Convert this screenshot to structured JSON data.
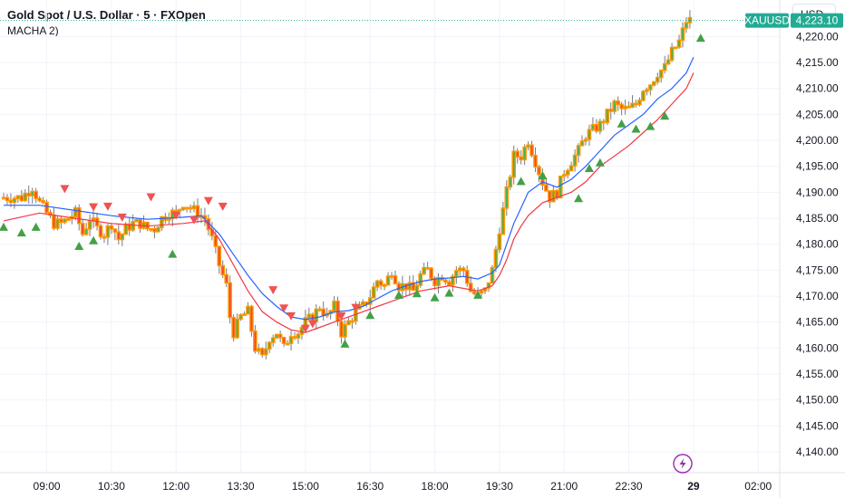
{
  "header": {
    "title": "Gold Spot / U.S. Dollar · 5 · FXOpen",
    "indicator_label": "MACHA 2)",
    "currency_button": "USD"
  },
  "price_tag": {
    "symbol": "XAUUSD",
    "value": "4,223.10",
    "price": 4223.1,
    "color": "#22ab94"
  },
  "lightning_icon": "lightning-icon",
  "colors": {
    "candle_up_body": "#4caf50",
    "candle_down_body": "#f44336",
    "candle_outline": "#ff9800",
    "wick": "#787b86",
    "ma_fast": "#2962ff",
    "ma_slow": "#f23645",
    "signal_up": "#43a047",
    "signal_down": "#ef5350",
    "grid": "#f0f3fa"
  },
  "chart_data": {
    "type": "candlestick",
    "ylim": [
      4136,
      4226
    ],
    "xlim": [
      0,
      216
    ],
    "grid": true,
    "y_ticks": [
      "4,140.00",
      "4,145.00",
      "4,150.00",
      "4,155.00",
      "4,160.00",
      "4,165.00",
      "4,170.00",
      "4,175.00",
      "4,180.00",
      "4,185.00",
      "4,190.00",
      "4,195.00",
      "4,200.00",
      "4,205.00",
      "4,210.00",
      "4,215.00",
      "4,220.00"
    ],
    "y_tick_values": [
      4140,
      4145,
      4150,
      4155,
      4160,
      4165,
      4170,
      4175,
      4180,
      4185,
      4190,
      4195,
      4200,
      4205,
      4210,
      4215,
      4220
    ],
    "x_ticks": [
      {
        "label": "09:00",
        "t": 12,
        "bold": false
      },
      {
        "label": "10:30",
        "t": 30,
        "bold": false
      },
      {
        "label": "12:00",
        "t": 48,
        "bold": false
      },
      {
        "label": "13:30",
        "t": 66,
        "bold": false
      },
      {
        "label": "15:00",
        "t": 84,
        "bold": false
      },
      {
        "label": "16:30",
        "t": 102,
        "bold": false
      },
      {
        "label": "18:00",
        "t": 120,
        "bold": false
      },
      {
        "label": "19:30",
        "t": 138,
        "bold": false
      },
      {
        "label": "21:00",
        "t": 156,
        "bold": false
      },
      {
        "label": "22:30",
        "t": 174,
        "bold": false
      },
      {
        "label": "29",
        "t": 192,
        "bold": true
      },
      {
        "label": "02:00",
        "t": 210,
        "bold": false
      }
    ],
    "price_key": [
      [
        0,
        4189
      ],
      [
        5,
        4189
      ],
      [
        8,
        4191
      ],
      [
        10,
        4188
      ],
      [
        12,
        4186
      ],
      [
        14,
        4184
      ],
      [
        16,
        4184
      ],
      [
        18,
        4185
      ],
      [
        20,
        4186
      ],
      [
        22,
        4182
      ],
      [
        24,
        4185
      ],
      [
        26,
        4183
      ],
      [
        28,
        4182
      ],
      [
        30,
        4184
      ],
      [
        32,
        4181
      ],
      [
        34,
        4183
      ],
      [
        36,
        4184
      ],
      [
        38,
        4184
      ],
      [
        40,
        4183
      ],
      [
        42,
        4183
      ],
      [
        44,
        4185
      ],
      [
        46,
        4186
      ],
      [
        48,
        4186
      ],
      [
        50,
        4188
      ],
      [
        52,
        4187
      ],
      [
        54,
        4186
      ],
      [
        56,
        4185
      ],
      [
        58,
        4181
      ],
      [
        60,
        4176
      ],
      [
        62,
        4172
      ],
      [
        63,
        4166
      ],
      [
        64,
        4163
      ],
      [
        66,
        4166
      ],
      [
        68,
        4167
      ],
      [
        70,
        4160
      ],
      [
        72,
        4158
      ],
      [
        74,
        4162
      ],
      [
        76,
        4163
      ],
      [
        78,
        4160
      ],
      [
        80,
        4163
      ],
      [
        82,
        4163
      ],
      [
        84,
        4165
      ],
      [
        86,
        4166
      ],
      [
        88,
        4168
      ],
      [
        90,
        4166
      ],
      [
        92,
        4168
      ],
      [
        94,
        4163
      ],
      [
        96,
        4165
      ],
      [
        98,
        4167
      ],
      [
        100,
        4168
      ],
      [
        102,
        4170
      ],
      [
        104,
        4173
      ],
      [
        106,
        4172
      ],
      [
        108,
        4175
      ],
      [
        110,
        4172
      ],
      [
        112,
        4172
      ],
      [
        114,
        4171
      ],
      [
        116,
        4174
      ],
      [
        118,
        4175
      ],
      [
        120,
        4173
      ],
      [
        122,
        4174
      ],
      [
        124,
        4173
      ],
      [
        126,
        4175
      ],
      [
        128,
        4175
      ],
      [
        130,
        4171
      ],
      [
        132,
        4170
      ],
      [
        134,
        4171
      ],
      [
        136,
        4175
      ],
      [
        138,
        4183
      ],
      [
        140,
        4190
      ],
      [
        142,
        4197
      ],
      [
        144,
        4197
      ],
      [
        146,
        4200
      ],
      [
        148,
        4196
      ],
      [
        150,
        4192
      ],
      [
        152,
        4189
      ],
      [
        154,
        4190
      ],
      [
        156,
        4194
      ],
      [
        158,
        4196
      ],
      [
        160,
        4198
      ],
      [
        162,
        4201
      ],
      [
        164,
        4202
      ],
      [
        166,
        4203
      ],
      [
        168,
        4205
      ],
      [
        170,
        4207
      ],
      [
        172,
        4206
      ],
      [
        174,
        4206
      ],
      [
        176,
        4207
      ],
      [
        178,
        4210
      ],
      [
        180,
        4211
      ],
      [
        182,
        4213
      ],
      [
        184,
        4214
      ],
      [
        186,
        4217
      ],
      [
        188,
        4219
      ],
      [
        190,
        4223
      ],
      [
        191,
        4223.1
      ]
    ],
    "ma_fast": [
      [
        0,
        4187.5
      ],
      [
        10,
        4187.5
      ],
      [
        20,
        4186.5
      ],
      [
        30,
        4185.5
      ],
      [
        40,
        4184.8
      ],
      [
        50,
        4185.2
      ],
      [
        55,
        4185.5
      ],
      [
        60,
        4182
      ],
      [
        64,
        4178
      ],
      [
        68,
        4174
      ],
      [
        72,
        4170.5
      ],
      [
        76,
        4168
      ],
      [
        80,
        4166
      ],
      [
        84,
        4165.5
      ],
      [
        88,
        4166
      ],
      [
        92,
        4167
      ],
      [
        96,
        4167.2
      ],
      [
        100,
        4168
      ],
      [
        104,
        4169.5
      ],
      [
        108,
        4171
      ],
      [
        112,
        4172
      ],
      [
        116,
        4172.8
      ],
      [
        120,
        4173.3
      ],
      [
        124,
        4173.5
      ],
      [
        128,
        4173.8
      ],
      [
        132,
        4173.3
      ],
      [
        136,
        4174.5
      ],
      [
        138,
        4176
      ],
      [
        140,
        4180
      ],
      [
        142,
        4184
      ],
      [
        144,
        4187
      ],
      [
        146,
        4190
      ],
      [
        150,
        4192
      ],
      [
        154,
        4191
      ],
      [
        158,
        4192.5
      ],
      [
        162,
        4195
      ],
      [
        166,
        4198
      ],
      [
        170,
        4201
      ],
      [
        174,
        4203
      ],
      [
        178,
        4205
      ],
      [
        182,
        4208
      ],
      [
        186,
        4210
      ],
      [
        190,
        4213
      ],
      [
        192,
        4216
      ]
    ],
    "ma_slow": [
      [
        0,
        4184.5
      ],
      [
        10,
        4186
      ],
      [
        20,
        4185
      ],
      [
        30,
        4184
      ],
      [
        40,
        4183.5
      ],
      [
        50,
        4184
      ],
      [
        56,
        4184.5
      ],
      [
        60,
        4181
      ],
      [
        64,
        4176
      ],
      [
        68,
        4171
      ],
      [
        72,
        4167
      ],
      [
        76,
        4165
      ],
      [
        80,
        4163.5
      ],
      [
        84,
        4163
      ],
      [
        88,
        4164
      ],
      [
        92,
        4165
      ],
      [
        96,
        4166
      ],
      [
        100,
        4167
      ],
      [
        104,
        4168
      ],
      [
        108,
        4169
      ],
      [
        112,
        4170
      ],
      [
        116,
        4171
      ],
      [
        120,
        4171.5
      ],
      [
        124,
        4172
      ],
      [
        128,
        4171.5
      ],
      [
        132,
        4171
      ],
      [
        136,
        4172
      ],
      [
        138,
        4174
      ],
      [
        140,
        4177
      ],
      [
        142,
        4181
      ],
      [
        144,
        4183.5
      ],
      [
        146,
        4185.5
      ],
      [
        150,
        4188
      ],
      [
        154,
        4189
      ],
      [
        158,
        4190
      ],
      [
        162,
        4192
      ],
      [
        166,
        4195
      ],
      [
        170,
        4197
      ],
      [
        174,
        4199
      ],
      [
        178,
        4201.5
      ],
      [
        182,
        4204
      ],
      [
        186,
        4207
      ],
      [
        190,
        4210
      ],
      [
        192,
        4213
      ]
    ],
    "signals_up": [
      [
        0,
        4183.3
      ],
      [
        5,
        4182.2
      ],
      [
        9,
        4183.3
      ],
      [
        21,
        4179.6
      ],
      [
        25,
        4180.7
      ],
      [
        47,
        4178.1
      ],
      [
        95,
        4160.8
      ],
      [
        102,
        4166.3
      ],
      [
        110,
        4170.2
      ],
      [
        115,
        4170.5
      ],
      [
        120,
        4169.7
      ],
      [
        124,
        4170.6
      ],
      [
        132,
        4170.2
      ],
      [
        144,
        4192.1
      ],
      [
        150,
        4193.2
      ],
      [
        160,
        4188.8
      ],
      [
        163,
        4194.6
      ],
      [
        166,
        4195.7
      ],
      [
        172,
        4203.2
      ],
      [
        176,
        4202.2
      ],
      [
        180,
        4202.7
      ],
      [
        184,
        4204.7
      ],
      [
        194,
        4219.7
      ]
    ],
    "signals_down": [
      [
        17,
        4190.7
      ],
      [
        25,
        4187.2
      ],
      [
        29,
        4187.3
      ],
      [
        33,
        4185.2
      ],
      [
        41,
        4189.1
      ],
      [
        48,
        4185.6
      ],
      [
        53,
        4184.7
      ],
      [
        57,
        4188.4
      ],
      [
        61,
        4187.3
      ],
      [
        75,
        4171.2
      ],
      [
        78,
        4167.7
      ],
      [
        80,
        4166.2
      ],
      [
        84,
        4163.8
      ],
      [
        86,
        4164.7
      ],
      [
        94,
        4166.2
      ],
      [
        98,
        4167.8
      ]
    ]
  }
}
